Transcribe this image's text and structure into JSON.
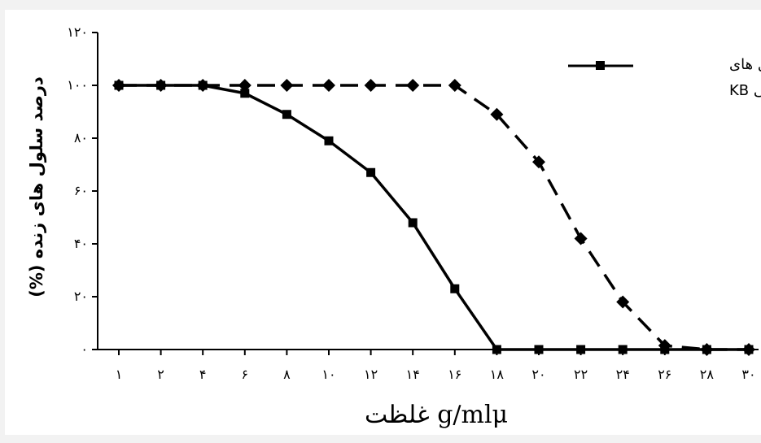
{
  "chart_data": {
    "type": "line",
    "x": [
      1,
      2,
      4,
      6,
      8,
      10,
      12,
      14,
      16,
      18,
      20,
      22,
      24,
      26,
      28,
      30
    ],
    "x_tick_labels": [
      "۱",
      "۲",
      "۴",
      "۶",
      "۸",
      "۱۰",
      "۱۲",
      "۱۴",
      "۱۶",
      "۱۸",
      "۲۰",
      "۲۲",
      "۲۴",
      "۲۶",
      "۲۸",
      "۳۰"
    ],
    "y_ticks": [
      0,
      20,
      40,
      60,
      80,
      100,
      120
    ],
    "y_tick_labels": [
      "۰",
      "۲۰",
      "۴۰",
      "۶۰",
      "۸۰",
      "۱۰۰",
      "۱۲۰"
    ],
    "ylim": [
      0,
      120
    ],
    "xlabel": "g/mlμ غلظت",
    "ylabel": "درصد سلول های زنده (%)",
    "legend": {
      "placement": "top-right",
      "lines": [
        "سلول های",
        "سرطانی KB"
      ]
    },
    "grid": false,
    "series": [
      {
        "name": "سلول های سرطانی KB",
        "marker": "square",
        "style": "solid",
        "values": [
          100,
          100,
          100,
          97,
          89,
          79,
          67,
          48,
          23,
          0,
          0,
          0,
          0,
          0,
          0,
          0
        ]
      },
      {
        "marker": "diamond",
        "style": "dashed",
        "values": [
          100,
          100,
          100,
          100,
          100,
          100,
          100,
          100,
          100,
          89,
          71,
          42,
          18,
          1.5,
          0,
          0
        ]
      }
    ]
  }
}
